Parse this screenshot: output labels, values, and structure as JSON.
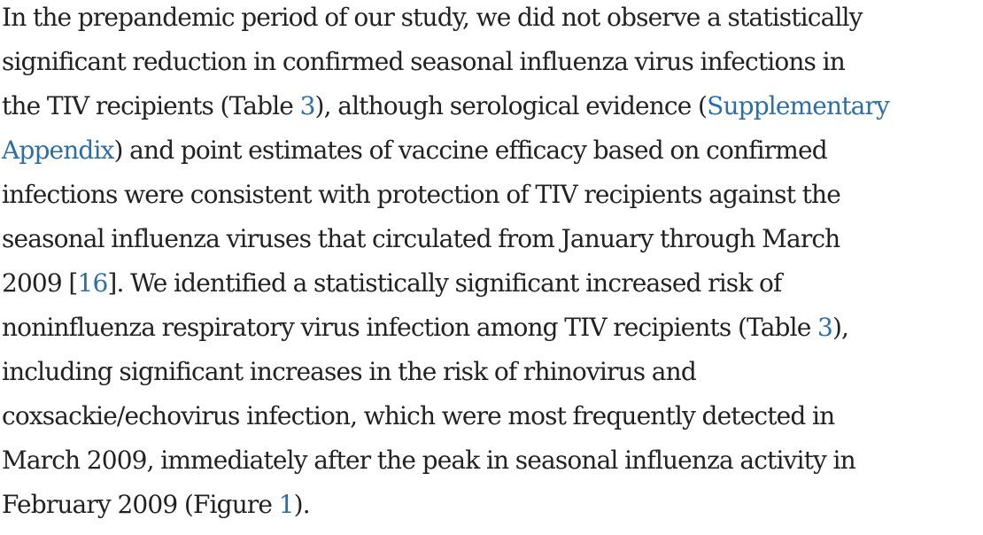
{
  "paragraph": {
    "l1": "In the prepandemic period of our study, we did not observe a statistically",
    "l2": "significant reduction in confirmed seasonal influenza virus infections in",
    "l3_a": "the TIV recipients (Table ",
    "l3_link_table": "3",
    "l3_b": "), although serological evidence (",
    "l3_link_supp": "Supplementary",
    "l4_link_appendix": "Appendix",
    "l4_b": ") and point estimates of vaccine efficacy based on confirmed",
    "l5": "infections were consistent with protection of TIV recipients against the",
    "l6": "seasonal influenza viruses that circulated from January through March",
    "l7_a": "2009 [",
    "l7_link_ref": "16",
    "l7_b": "]. We identified a statistically significant increased risk of",
    "l8_a": "noninfluenza respiratory virus infection among TIV recipients (Table ",
    "l8_link_table": "3",
    "l8_b": "),",
    "l9": "including significant increases in the risk of rhinovirus and",
    "l10": "coxsackie/echovirus infection, which were most frequently detected in",
    "l11": "March 2009, immediately after the peak in seasonal influenza activity in",
    "l12_a": "February 2009 (Figure ",
    "l12_link_figure": "1",
    "l12_b": ")."
  },
  "colors": {
    "text": "#222222",
    "link": "#2c6fa6",
    "background": "#ffffff"
  }
}
